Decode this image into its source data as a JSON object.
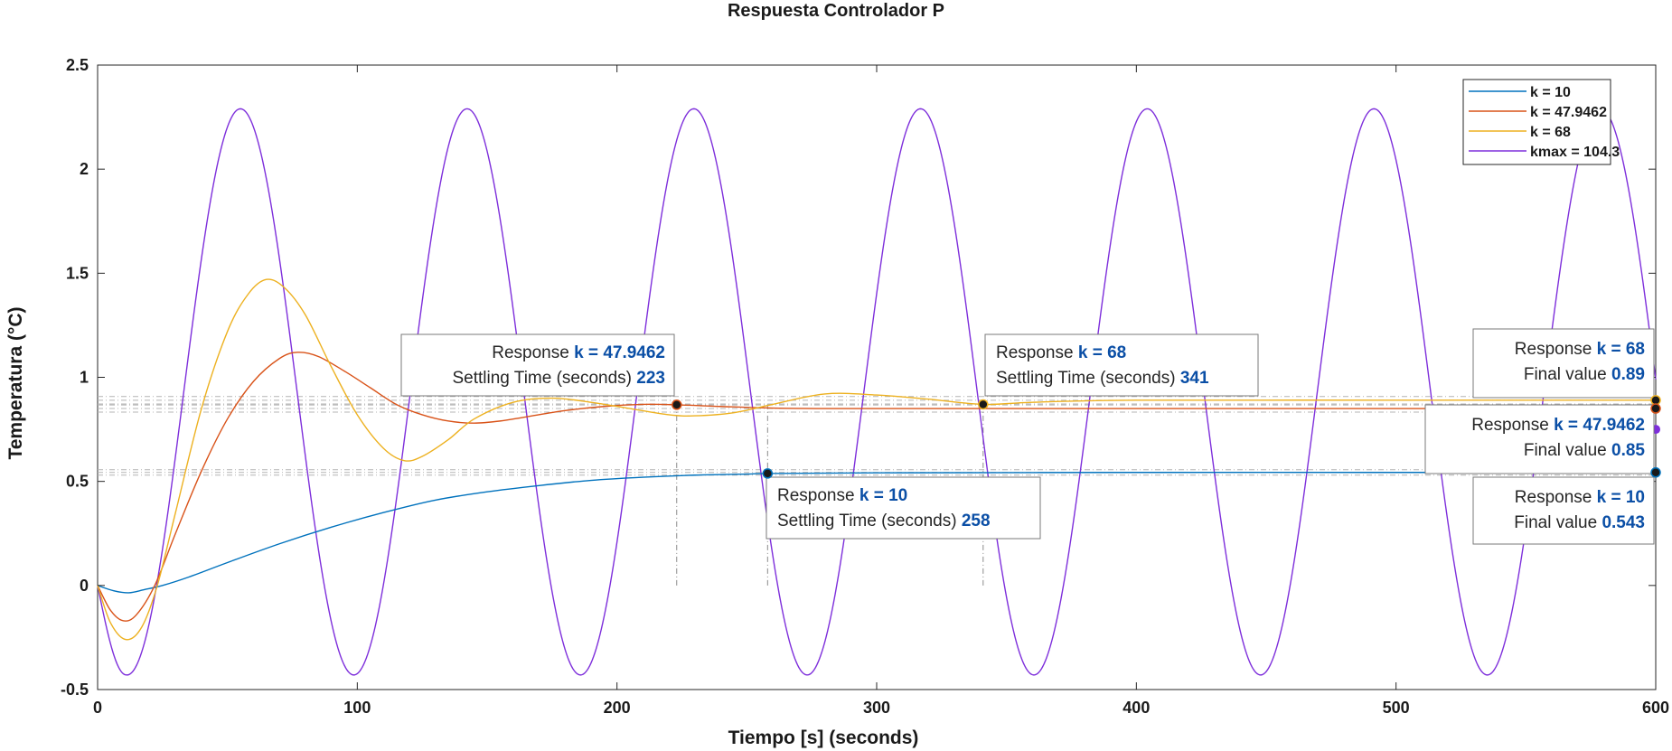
{
  "chart_data": {
    "type": "line",
    "title": "Respuesta Controlador P",
    "xlabel": "Tiempo [s] (seconds)",
    "ylabel": "Temperatura (°C)",
    "xlim": [
      0,
      600
    ],
    "ylim": [
      -0.5,
      2.5
    ],
    "xticks": [
      0,
      100,
      200,
      300,
      400,
      500,
      600
    ],
    "yticks": [
      -0.5,
      0,
      0.5,
      1,
      1.5,
      2,
      2.5
    ],
    "xtick_labels": [
      "0",
      "100",
      "200",
      "300",
      "400",
      "500",
      "600"
    ],
    "ytick_labels": [
      "-0.5",
      "0",
      "0.5",
      "1",
      "1.5",
      "2",
      "2.5"
    ],
    "grid": false,
    "legend": "top-right",
    "series": [
      {
        "name": "k = 10",
        "color": "#0072BD",
        "points": [
          [
            0,
            0
          ],
          [
            6,
            -0.025
          ],
          [
            12,
            -0.035
          ],
          [
            18,
            -0.02
          ],
          [
            25,
            0.0
          ],
          [
            35,
            0.04
          ],
          [
            50,
            0.11
          ],
          [
            70,
            0.2
          ],
          [
            90,
            0.28
          ],
          [
            110,
            0.35
          ],
          [
            130,
            0.41
          ],
          [
            150,
            0.45
          ],
          [
            170,
            0.48
          ],
          [
            190,
            0.505
          ],
          [
            210,
            0.52
          ],
          [
            230,
            0.53
          ],
          [
            250,
            0.535
          ],
          [
            258,
            0.538
          ],
          [
            300,
            0.541
          ],
          [
            400,
            0.543
          ],
          [
            500,
            0.543
          ],
          [
            600,
            0.543
          ]
        ]
      },
      {
        "name": "k = 47.9462",
        "color": "#D95319",
        "points": [
          [
            0,
            0
          ],
          [
            5,
            -0.12
          ],
          [
            10,
            -0.17
          ],
          [
            15,
            -0.14
          ],
          [
            22,
            0.0
          ],
          [
            30,
            0.25
          ],
          [
            40,
            0.55
          ],
          [
            50,
            0.8
          ],
          [
            60,
            0.98
          ],
          [
            70,
            1.09
          ],
          [
            77,
            1.12
          ],
          [
            85,
            1.1
          ],
          [
            95,
            1.03
          ],
          [
            105,
            0.95
          ],
          [
            115,
            0.87
          ],
          [
            125,
            0.82
          ],
          [
            135,
            0.79
          ],
          [
            145,
            0.78
          ],
          [
            155,
            0.79
          ],
          [
            165,
            0.81
          ],
          [
            180,
            0.84
          ],
          [
            195,
            0.86
          ],
          [
            210,
            0.87
          ],
          [
            223,
            0.868
          ],
          [
            240,
            0.86
          ],
          [
            260,
            0.852
          ],
          [
            280,
            0.85
          ],
          [
            300,
            0.85
          ],
          [
            400,
            0.85
          ],
          [
            500,
            0.85
          ],
          [
            600,
            0.85
          ]
        ]
      },
      {
        "name": "k = 68",
        "color": "#EDB120",
        "points": [
          [
            0,
            0
          ],
          [
            5,
            -0.18
          ],
          [
            11,
            -0.26
          ],
          [
            17,
            -0.2
          ],
          [
            23,
            0.0
          ],
          [
            30,
            0.35
          ],
          [
            40,
            0.85
          ],
          [
            50,
            1.22
          ],
          [
            58,
            1.4
          ],
          [
            65,
            1.47
          ],
          [
            72,
            1.43
          ],
          [
            80,
            1.3
          ],
          [
            90,
            1.05
          ],
          [
            100,
            0.82
          ],
          [
            110,
            0.66
          ],
          [
            118,
            0.6
          ],
          [
            125,
            0.62
          ],
          [
            135,
            0.7
          ],
          [
            145,
            0.8
          ],
          [
            160,
            0.88
          ],
          [
            175,
            0.9
          ],
          [
            190,
            0.88
          ],
          [
            205,
            0.85
          ],
          [
            220,
            0.82
          ],
          [
            230,
            0.815
          ],
          [
            245,
            0.83
          ],
          [
            260,
            0.87
          ],
          [
            280,
            0.92
          ],
          [
            300,
            0.915
          ],
          [
            320,
            0.895
          ],
          [
            341,
            0.87
          ],
          [
            360,
            0.88
          ],
          [
            400,
            0.89
          ],
          [
            500,
            0.89
          ],
          [
            600,
            0.89
          ]
        ]
      },
      {
        "name": "kmax = 104.3",
        "color": "#7E2FDB",
        "oscillation": {
          "mean": 0.93,
          "amplitude": 1.36,
          "period": 87.3,
          "peak_first": 55
        },
        "peaks": [
          2.29,
          2.29,
          2.29,
          2.29,
          2.29,
          2.29
        ],
        "troughs": [
          -0.43,
          -0.43,
          -0.43,
          -0.43,
          -0.43,
          -0.43,
          -0.43
        ]
      }
    ],
    "datatips": [
      {
        "series": "k = 47.9462",
        "x": 223,
        "y": 0.868,
        "label1": "Response",
        "key1": "k =",
        "value1": "47.9462",
        "label2": "Settling Time (seconds)",
        "value2": "223"
      },
      {
        "series": "k = 68",
        "x": 341,
        "y": 0.87,
        "label1": "Response",
        "key1": "k =",
        "value1": "68",
        "label2": "Settling Time (seconds)",
        "value2": "341"
      },
      {
        "series": "k = 10",
        "x": 258,
        "y": 0.538,
        "label1": "Response",
        "key1": "k =",
        "value1": "10",
        "label2": "Settling Time (seconds)",
        "value2": "258"
      },
      {
        "series": "k = 68",
        "x": 600,
        "y": 0.89,
        "label1": "Response",
        "key1": "k =",
        "value1": "68",
        "label2": "Final value",
        "value2": "0.89"
      },
      {
        "series": "k = 47.9462",
        "x": 600,
        "y": 0.85,
        "label1": "Response",
        "key1": "k =",
        "value1": "47.9462",
        "label2": "Final value",
        "value2": "0.85"
      },
      {
        "series": "k = 10",
        "x": 600,
        "y": 0.543,
        "label1": "Response",
        "key1": "k =",
        "value1": "10",
        "label2": "Final value",
        "value2": "0.543"
      }
    ]
  }
}
